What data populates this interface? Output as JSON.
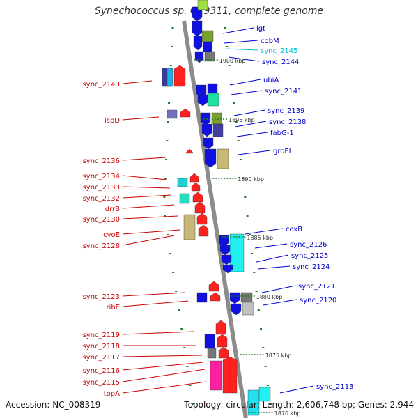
{
  "title": "Synechococcus sp. CC9311, complete genome",
  "footer": {
    "accession": "Accession: NC_008319",
    "topology": "Topology: circular; Length: 2,606,748 bp; Genes: 2,944"
  },
  "colors": {
    "backbone": "#8c8c8c",
    "tick": "#1f7a1f",
    "label_left": "#cc0000",
    "label_right": "#0000cc",
    "label_highlight": "#00bfdf",
    "scale_text": "#333333"
  },
  "scale_labels": [
    "1900 kbp",
    "1895 kbp",
    "1890 kbp",
    "1885 kbp",
    "1880 kbp",
    "1875 kbp",
    "1870 kbp"
  ],
  "genes_left": [
    {
      "label": "sync_2143",
      "color": "#ff2020"
    },
    {
      "label": "ispD",
      "color": "#ff2020"
    },
    {
      "label": "sync_2136",
      "color": "#ff2020"
    },
    {
      "label": "sync_2134",
      "color": "#ff2020"
    },
    {
      "label": "sync_2133",
      "color": "#ff2020"
    },
    {
      "label": "sync_2132",
      "color": "#ff2020"
    },
    {
      "label": "drrB",
      "color": "#ff2020"
    },
    {
      "label": "sync_2130",
      "color": "#ff2020"
    },
    {
      "label": "cyoE",
      "color": "#ff2020"
    },
    {
      "label": "sync_2128",
      "color": "#ff2020"
    },
    {
      "label": "sync_2123",
      "color": "#ff2020"
    },
    {
      "label": "ribE",
      "color": "#ff2020"
    },
    {
      "label": "sync_2119",
      "color": "#ff2020"
    },
    {
      "label": "sync_2118",
      "color": "#ff2020"
    },
    {
      "label": "sync_2117",
      "color": "#ff2020"
    },
    {
      "label": "sync_2116",
      "color": "#ff2020"
    },
    {
      "label": "sync_2115",
      "color": "#ff2020"
    },
    {
      "label": "topA",
      "color": "#ff2020"
    }
  ],
  "genes_right": [
    {
      "label": "lgt",
      "color": "#1010e0"
    },
    {
      "label": "cobM",
      "color": "#1010e0"
    },
    {
      "label": "sync_2145",
      "color": "#1010e0"
    },
    {
      "label": "sync_2144",
      "color": "#1010e0"
    },
    {
      "label": "ubiA",
      "color": "#1010e0"
    },
    {
      "label": "sync_2141",
      "color": "#1010e0"
    },
    {
      "label": "sync_2139",
      "color": "#1010e0"
    },
    {
      "label": "sync_2138",
      "color": "#1010e0"
    },
    {
      "label": "fabG-1",
      "color": "#1010e0"
    },
    {
      "label": "groEL",
      "color": "#1010e0"
    },
    {
      "label": "coxB",
      "color": "#1010e0"
    },
    {
      "label": "sync_2126",
      "color": "#1010e0"
    },
    {
      "label": "sync_2125",
      "color": "#1010e0"
    },
    {
      "label": "sync_2124",
      "color": "#1010e0"
    },
    {
      "label": "sync_2121",
      "color": "#1010e0"
    },
    {
      "label": "sync_2120",
      "color": "#1010e0"
    },
    {
      "label": "sync_2113",
      "color": "#1010e0"
    }
  ]
}
